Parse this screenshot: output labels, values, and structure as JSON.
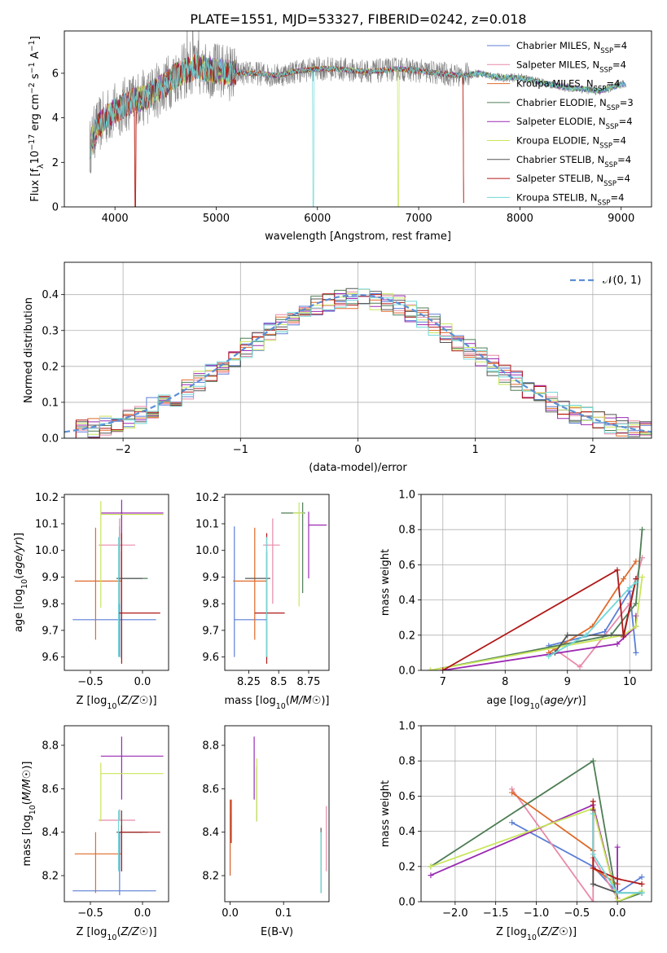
{
  "figure_title": "PLATE=1551, MJD=53327, FIBERID=0242, z=0.018",
  "colors": {
    "data": "#808080",
    "models": [
      "#5b7fd6",
      "#e88aa8",
      "#e06a2a",
      "#4e7d55",
      "#9a2ab2",
      "#c8e65a",
      "#555555",
      "#b01818",
      "#70d8d8"
    ],
    "gaussian": "#5b8fd6",
    "grid": "#b0b0b0"
  },
  "models": [
    {
      "name": "Chabrier MILES, N",
      "sub": "SSP",
      "suffix": "=4"
    },
    {
      "name": "Salpeter MILES, N",
      "sub": "SSP",
      "suffix": "=4"
    },
    {
      "name": "Kroupa MILES, N",
      "sub": "SSP",
      "suffix": "=4"
    },
    {
      "name": "Chabrier ELODIE, N",
      "sub": "SSP",
      "suffix": "=3"
    },
    {
      "name": "Salpeter ELODIE, N",
      "sub": "SSP",
      "suffix": "=4"
    },
    {
      "name": "Kroupa ELODIE, N",
      "sub": "SSP",
      "suffix": "=4"
    },
    {
      "name": "Chabrier STELIB, N",
      "sub": "SSP",
      "suffix": "=4"
    },
    {
      "name": "Salpeter STELIB, N",
      "sub": "SSP",
      "suffix": "=4"
    },
    {
      "name": "Kroupa STELIB, N",
      "sub": "SSP",
      "suffix": "=4"
    }
  ],
  "chart_data": [
    {
      "id": "spectrum",
      "type": "line",
      "xlabel": "wavelength [Angstrom, rest frame]",
      "ylabel": "Flux [f_λ10^-17 erg cm^-2 s^-1 A^-1]",
      "xlim": [
        3500,
        9300
      ],
      "ylim": [
        0,
        7.9
      ],
      "xticks": [
        4000,
        5000,
        6000,
        7000,
        8000,
        9000
      ],
      "yticks": [
        0,
        2,
        4,
        6
      ],
      "legend": "top-right",
      "continuum": {
        "x": [
          3750,
          3800,
          3900,
          4000,
          4100,
          4200,
          4300,
          4400,
          4500,
          4600,
          4700,
          4800,
          5000,
          5200,
          5400,
          5600,
          5800,
          6000,
          6200,
          6400,
          6600,
          6800,
          7000,
          7200,
          7400,
          7600,
          7800,
          8000,
          8200,
          8400,
          8600,
          8800,
          9000
        ],
        "y": [
          2.6,
          3.4,
          4.0,
          4.3,
          4.6,
          4.8,
          4.9,
          5.2,
          5.5,
          5.9,
          6.1,
          6.3,
          6.1,
          6.0,
          6.0,
          5.9,
          6.1,
          6.2,
          6.2,
          6.1,
          6.1,
          6.2,
          6.1,
          6.0,
          5.9,
          6.0,
          5.8,
          5.8,
          5.6,
          5.4,
          5.3,
          5.2,
          5.5
        ]
      }
    },
    {
      "id": "residuals",
      "type": "histogram",
      "xlabel": "(data-model)/error",
      "ylabel": "Normed distribution",
      "xlim": [
        -2.5,
        2.5
      ],
      "ylim": [
        0,
        0.49
      ],
      "xticks": [
        -2,
        -1,
        0,
        1,
        2
      ],
      "yticks": [
        0.0,
        0.1,
        0.2,
        0.3,
        0.4
      ],
      "grid": true,
      "legend": "top-right",
      "gaussian_label": "𝒩(0, 1)"
    },
    {
      "id": "age-vs-Z",
      "type": "errorbar",
      "xlabel": "Z [log10(Z/Z☉)]",
      "ylabel": "age  [log10(age/yr)]",
      "xlim": [
        -0.75,
        0.25
      ],
      "ylim": [
        9.55,
        10.21
      ],
      "xticks": [
        -0.5,
        0.0
      ],
      "yticks": [
        9.6,
        9.7,
        9.8,
        9.9,
        10.0,
        10.1,
        10.2
      ],
      "points": [
        {
          "x": -0.22,
          "xerr": [
            0.45,
            0.35
          ],
          "y": 9.74,
          "yerr": [
            0.14,
            0.35
          ]
        },
        {
          "x": -0.22,
          "xerr": [
            0.2,
            0.15
          ],
          "y": 10.02,
          "yerr": [
            0.22,
            0.1
          ]
        },
        {
          "x": -0.45,
          "xerr": [
            0.2,
            0.25
          ],
          "y": 9.885,
          "yerr": [
            0.22,
            0.2
          ]
        },
        {
          "x": -0.2,
          "xerr": [
            0.0,
            0.25
          ],
          "y": 9.895,
          "yerr": [
            0.3,
            0.25
          ]
        },
        {
          "x": -0.2,
          "xerr": [
            0.2,
            0.4
          ],
          "y": 10.14,
          "yerr": [
            0.1,
            0.05
          ]
        },
        {
          "x": -0.4,
          "xerr": [
            0.0,
            0.6
          ],
          "y": 10.135,
          "yerr": [
            0.35,
            0.05
          ]
        },
        {
          "x": -0.2,
          "xerr": [
            0.05,
            0.2
          ],
          "y": 9.895,
          "yerr": [
            0.3,
            0.1
          ]
        },
        {
          "x": -0.2,
          "xerr": [
            0.03,
            0.37
          ],
          "y": 9.765,
          "yerr": [
            0.19,
            0.3
          ]
        },
        {
          "x": -0.23,
          "xerr": [
            0.0,
            0.0
          ],
          "y": 9.9,
          "yerr": [
            0.3,
            0.15
          ]
        }
      ]
    },
    {
      "id": "age-vs-mass",
      "type": "errorbar",
      "xlabel": "mass [log10(M/M☉)]",
      "ylabel": "",
      "xlim": [
        8.05,
        8.92
      ],
      "ylim": [
        9.55,
        10.21
      ],
      "xticks": [
        8.25,
        8.5,
        8.75
      ],
      "yticks": [
        9.6,
        9.7,
        9.8,
        9.9,
        10.0,
        10.1,
        10.2
      ],
      "points": [
        {
          "x": 8.13,
          "xerr": [
            0.0,
            0.27
          ],
          "y": 9.74,
          "yerr": [
            0.14,
            0.35
          ]
        },
        {
          "x": 8.45,
          "xerr": [
            0.08,
            0.06
          ],
          "y": 10.02,
          "yerr": [
            0.22,
            0.1
          ]
        },
        {
          "x": 8.3,
          "xerr": [
            0.18,
            0.1
          ],
          "y": 9.885,
          "yerr": [
            0.22,
            0.2
          ]
        },
        {
          "x": 8.7,
          "xerr": [
            0.18,
            0.02
          ],
          "y": 10.14,
          "yerr": [
            0.3,
            0.04
          ]
        },
        {
          "x": 8.75,
          "xerr": [
            0.0,
            0.15
          ],
          "y": 10.095,
          "yerr": [
            0.2,
            0.05
          ]
        },
        {
          "x": 8.67,
          "xerr": [
            0.05,
            0.04
          ],
          "y": 10.14,
          "yerr": [
            0.35,
            0.04
          ]
        },
        {
          "x": 8.4,
          "xerr": [
            0.18,
            0.03
          ],
          "y": 9.895,
          "yerr": [
            0.3,
            0.1
          ]
        },
        {
          "x": 8.4,
          "xerr": [
            0.1,
            0.15
          ],
          "y": 9.765,
          "yerr": [
            0.19,
            0.3
          ]
        },
        {
          "x": 8.4,
          "xerr": [
            0.0,
            0.0
          ],
          "y": 9.9,
          "yerr": [
            0.3,
            0.15
          ]
        }
      ]
    },
    {
      "id": "weight-vs-age",
      "type": "line",
      "xlabel": "age  [log10(age/yr)]",
      "ylabel": "mass weight",
      "xlim": [
        6.65,
        10.35
      ],
      "ylim": [
        0,
        1.0
      ],
      "xticks": [
        7,
        8,
        9,
        10
      ],
      "yticks": [
        0.0,
        0.2,
        0.4,
        0.6,
        0.8,
        1.0
      ],
      "grid": true,
      "series": [
        {
          "x": [
            8.7,
            9.6,
            10.0,
            10.1
          ],
          "y": [
            0.14,
            0.22,
            0.45,
            0.1
          ]
        },
        {
          "x": [
            8.8,
            9.2,
            10.0,
            10.2
          ],
          "y": [
            0.12,
            0.02,
            0.38,
            0.64
          ]
        },
        {
          "x": [
            8.7,
            9.4,
            9.9,
            10.1
          ],
          "y": [
            0.1,
            0.25,
            0.52,
            0.62
          ]
        },
        {
          "x": [
            6.8,
            9.7,
            10.1,
            10.2
          ],
          "y": [
            0.0,
            0.2,
            0.38,
            0.8
          ]
        },
        {
          "x": [
            7.0,
            9.8,
            10.1,
            10.1
          ],
          "y": [
            0.0,
            0.15,
            0.25,
            0.31
          ]
        },
        {
          "x": [
            6.8,
            9.9,
            10.1,
            10.2
          ],
          "y": [
            0.0,
            0.2,
            0.25,
            0.53
          ]
        },
        {
          "x": [
            8.8,
            9.0,
            9.9,
            10.1
          ],
          "y": [
            0.1,
            0.2,
            0.2,
            0.52
          ]
        },
        {
          "x": [
            7.0,
            9.8,
            9.9,
            10.1
          ],
          "y": [
            0.0,
            0.57,
            0.19,
            0.52
          ]
        },
        {
          "x": [
            8.7,
            9.3,
            10.0,
            10.1
          ],
          "y": [
            0.08,
            0.2,
            0.47,
            0.5
          ]
        }
      ]
    },
    {
      "id": "mass-vs-Z",
      "type": "errorbar",
      "xlabel": "Z [log10(Z/Z☉)]",
      "ylabel": "mass [log10(M/M☉)]",
      "xlim": [
        -0.75,
        0.25
      ],
      "ylim": [
        8.08,
        8.89
      ],
      "xticks": [
        -0.5,
        0.0
      ],
      "yticks": [
        8.2,
        8.4,
        8.6,
        8.8
      ],
      "points": [
        {
          "x": -0.22,
          "xerr": [
            0.45,
            0.35
          ],
          "y": 8.13,
          "yerr": [
            0.02,
            0.27
          ]
        },
        {
          "x": -0.22,
          "xerr": [
            0.2,
            0.15
          ],
          "y": 8.455,
          "yerr": [
            0.0,
            0.05
          ]
        },
        {
          "x": -0.45,
          "xerr": [
            0.2,
            0.25
          ],
          "y": 8.3,
          "yerr": [
            0.18,
            0.1
          ]
        },
        {
          "x": -0.2,
          "xerr": [
            0.0,
            0.25
          ],
          "y": 8.4,
          "yerr": [
            0.1,
            0.1
          ]
        },
        {
          "x": -0.2,
          "xerr": [
            0.2,
            0.4
          ],
          "y": 8.75,
          "yerr": [
            0.2,
            0.09
          ]
        },
        {
          "x": -0.4,
          "xerr": [
            0.0,
            0.6
          ],
          "y": 8.67,
          "yerr": [
            0.22,
            0.05
          ]
        },
        {
          "x": -0.2,
          "xerr": [
            0.05,
            0.2
          ],
          "y": 8.4,
          "yerr": [
            0.18,
            0.1
          ]
        },
        {
          "x": -0.2,
          "xerr": [
            0.03,
            0.37
          ],
          "y": 8.4,
          "yerr": [
            0.18,
            0.03
          ]
        },
        {
          "x": -0.23,
          "xerr": [
            0.0,
            0.0
          ],
          "y": 8.4,
          "yerr": [
            0.18,
            0.1
          ]
        }
      ]
    },
    {
      "id": "mass-vs-ebv",
      "type": "errorbar",
      "xlabel": "E(B-V)",
      "ylabel": "",
      "xlim": [
        -0.01,
        0.185
      ],
      "ylim": [
        8.08,
        8.89
      ],
      "xticks": [
        0.0,
        0.1
      ],
      "yticks": [
        8.2,
        8.4,
        8.6,
        8.8
      ],
      "points": [
        {
          "x": 0.0,
          "xerr": [
            0,
            0
          ],
          "y": 8.35,
          "yerr": [
            0.15,
            0.13
          ]
        },
        {
          "x": 0.18,
          "xerr": [
            0,
            0
          ],
          "y": 8.35,
          "yerr": [
            0.13,
            0.17
          ]
        },
        {
          "x": 0.0,
          "xerr": [
            0,
            0
          ],
          "y": 8.4,
          "yerr": [
            0.2,
            0.15
          ]
        },
        {
          "x": 0.05,
          "xerr": [
            0,
            0
          ],
          "y": 8.6,
          "yerr": [
            0.15,
            0.1
          ]
        },
        {
          "x": 0.045,
          "xerr": [
            0,
            0
          ],
          "y": 8.75,
          "yerr": [
            0.2,
            0.09
          ]
        },
        {
          "x": 0.05,
          "xerr": [
            0,
            0
          ],
          "y": 8.62,
          "yerr": [
            0.17,
            0.12
          ]
        },
        {
          "x": 0.17,
          "xerr": [
            0,
            0
          ],
          "y": 8.27,
          "yerr": [
            0.15,
            0.15
          ]
        },
        {
          "x": 0.002,
          "xerr": [
            0,
            0
          ],
          "y": 8.45,
          "yerr": [
            0.1,
            0.1
          ]
        },
        {
          "x": 0.17,
          "xerr": [
            0,
            0
          ],
          "y": 8.25,
          "yerr": [
            0.13,
            0.15
          ]
        }
      ]
    },
    {
      "id": "weight-vs-Z",
      "type": "line",
      "xlabel": "Z [log10(Z/Z☉)]",
      "ylabel": "mass weight",
      "xlim": [
        -2.42,
        0.42
      ],
      "ylim": [
        0,
        1.0
      ],
      "xticks": [
        -2.0,
        -1.5,
        -1.0,
        -0.5,
        0.0
      ],
      "yticks": [
        0.0,
        0.2,
        0.4,
        0.6,
        0.8,
        1.0
      ],
      "grid": true,
      "series": [
        {
          "x": [
            -1.3,
            -0.3,
            0.0,
            0.3
          ],
          "y": [
            0.45,
            0.2,
            0.05,
            0.14
          ]
        },
        {
          "x": [
            -1.3,
            -0.3,
            -0.3,
            0.0
          ],
          "y": [
            0.64,
            0.0,
            0.25,
            0.02
          ]
        },
        {
          "x": [
            -1.3,
            -0.3,
            -0.3,
            0.0
          ],
          "y": [
            0.62,
            0.29,
            0.19,
            0.1
          ]
        },
        {
          "x": [
            -2.3,
            -0.3,
            0.0,
            0.3
          ],
          "y": [
            0.2,
            0.8,
            0.0,
            0.05
          ]
        },
        {
          "x": [
            -2.3,
            -0.3,
            0.0,
            0.0
          ],
          "y": [
            0.15,
            0.55,
            0.0,
            0.31
          ]
        },
        {
          "x": [
            -2.3,
            -0.3,
            0.0,
            0.3
          ],
          "y": [
            0.2,
            0.53,
            0.0,
            0.06
          ]
        },
        {
          "x": [
            -0.3,
            -0.3,
            0.0,
            0.3
          ],
          "y": [
            0.52,
            0.1,
            0.05,
            0.05
          ]
        },
        {
          "x": [
            -0.3,
            -0.3,
            0.0,
            0.3
          ],
          "y": [
            0.57,
            0.19,
            0.13,
            0.1
          ]
        },
        {
          "x": [
            -0.3,
            -0.3,
            0.0,
            0.3
          ],
          "y": [
            0.5,
            0.27,
            0.05,
            0.05
          ]
        }
      ]
    }
  ]
}
